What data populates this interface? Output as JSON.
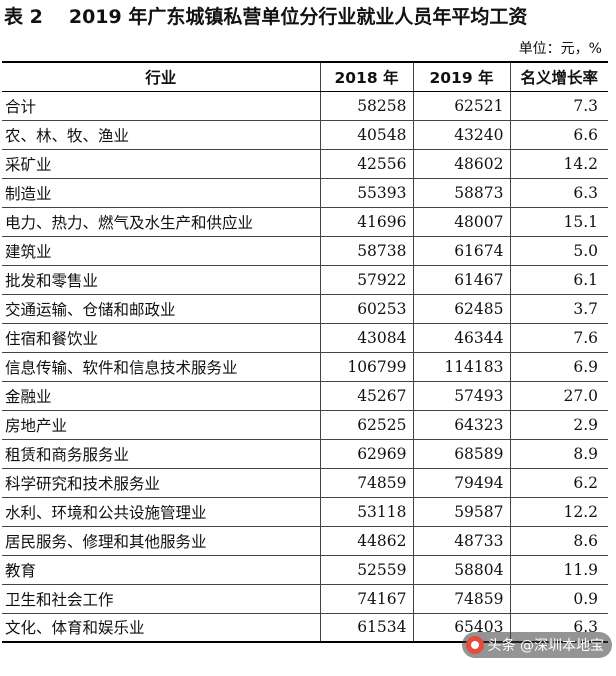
{
  "title": {
    "number": "表 2",
    "text": "2019 年广东城镇私营单位分行业就业人员年平均工资"
  },
  "unit": "单位：元，%",
  "table": {
    "headers": [
      "行业",
      "2018 年",
      "2019 年",
      "名义增长率"
    ],
    "rows": [
      [
        "合计",
        "58258",
        "62521",
        "7.3"
      ],
      [
        "农、林、牧、渔业",
        "40548",
        "43240",
        "6.6"
      ],
      [
        "采矿业",
        "42556",
        "48602",
        "14.2"
      ],
      [
        "制造业",
        "55393",
        "58873",
        "6.3"
      ],
      [
        "电力、热力、燃气及水生产和供应业",
        "41696",
        "48007",
        "15.1"
      ],
      [
        "建筑业",
        "58738",
        "61674",
        "5.0"
      ],
      [
        "批发和零售业",
        "57922",
        "61467",
        "6.1"
      ],
      [
        "交通运输、仓储和邮政业",
        "60253",
        "62485",
        "3.7"
      ],
      [
        "住宿和餐饮业",
        "43084",
        "46344",
        "7.6"
      ],
      [
        "信息传输、软件和信息技术服务业",
        "106799",
        "114183",
        "6.9"
      ],
      [
        "金融业",
        "45267",
        "57493",
        "27.0"
      ],
      [
        "房地产业",
        "62525",
        "64323",
        "2.9"
      ],
      [
        "租赁和商务服务业",
        "62969",
        "68589",
        "8.9"
      ],
      [
        "科学研究和技术服务业",
        "74859",
        "79494",
        "6.2"
      ],
      [
        "水利、环境和公共设施管理业",
        "53118",
        "59587",
        "12.2"
      ],
      [
        "居民服务、修理和其他服务业",
        "44862",
        "48733",
        "8.6"
      ],
      [
        "教育",
        "52559",
        "58804",
        "11.9"
      ],
      [
        "卫生和社会工作",
        "74167",
        "74859",
        "0.9"
      ],
      [
        "文化、体育和娱乐业",
        "61534",
        "65403",
        "6.3"
      ]
    ]
  },
  "watermark": "头条 @深圳本地宝",
  "watermark_icon": "toutiao-logo-icon"
}
